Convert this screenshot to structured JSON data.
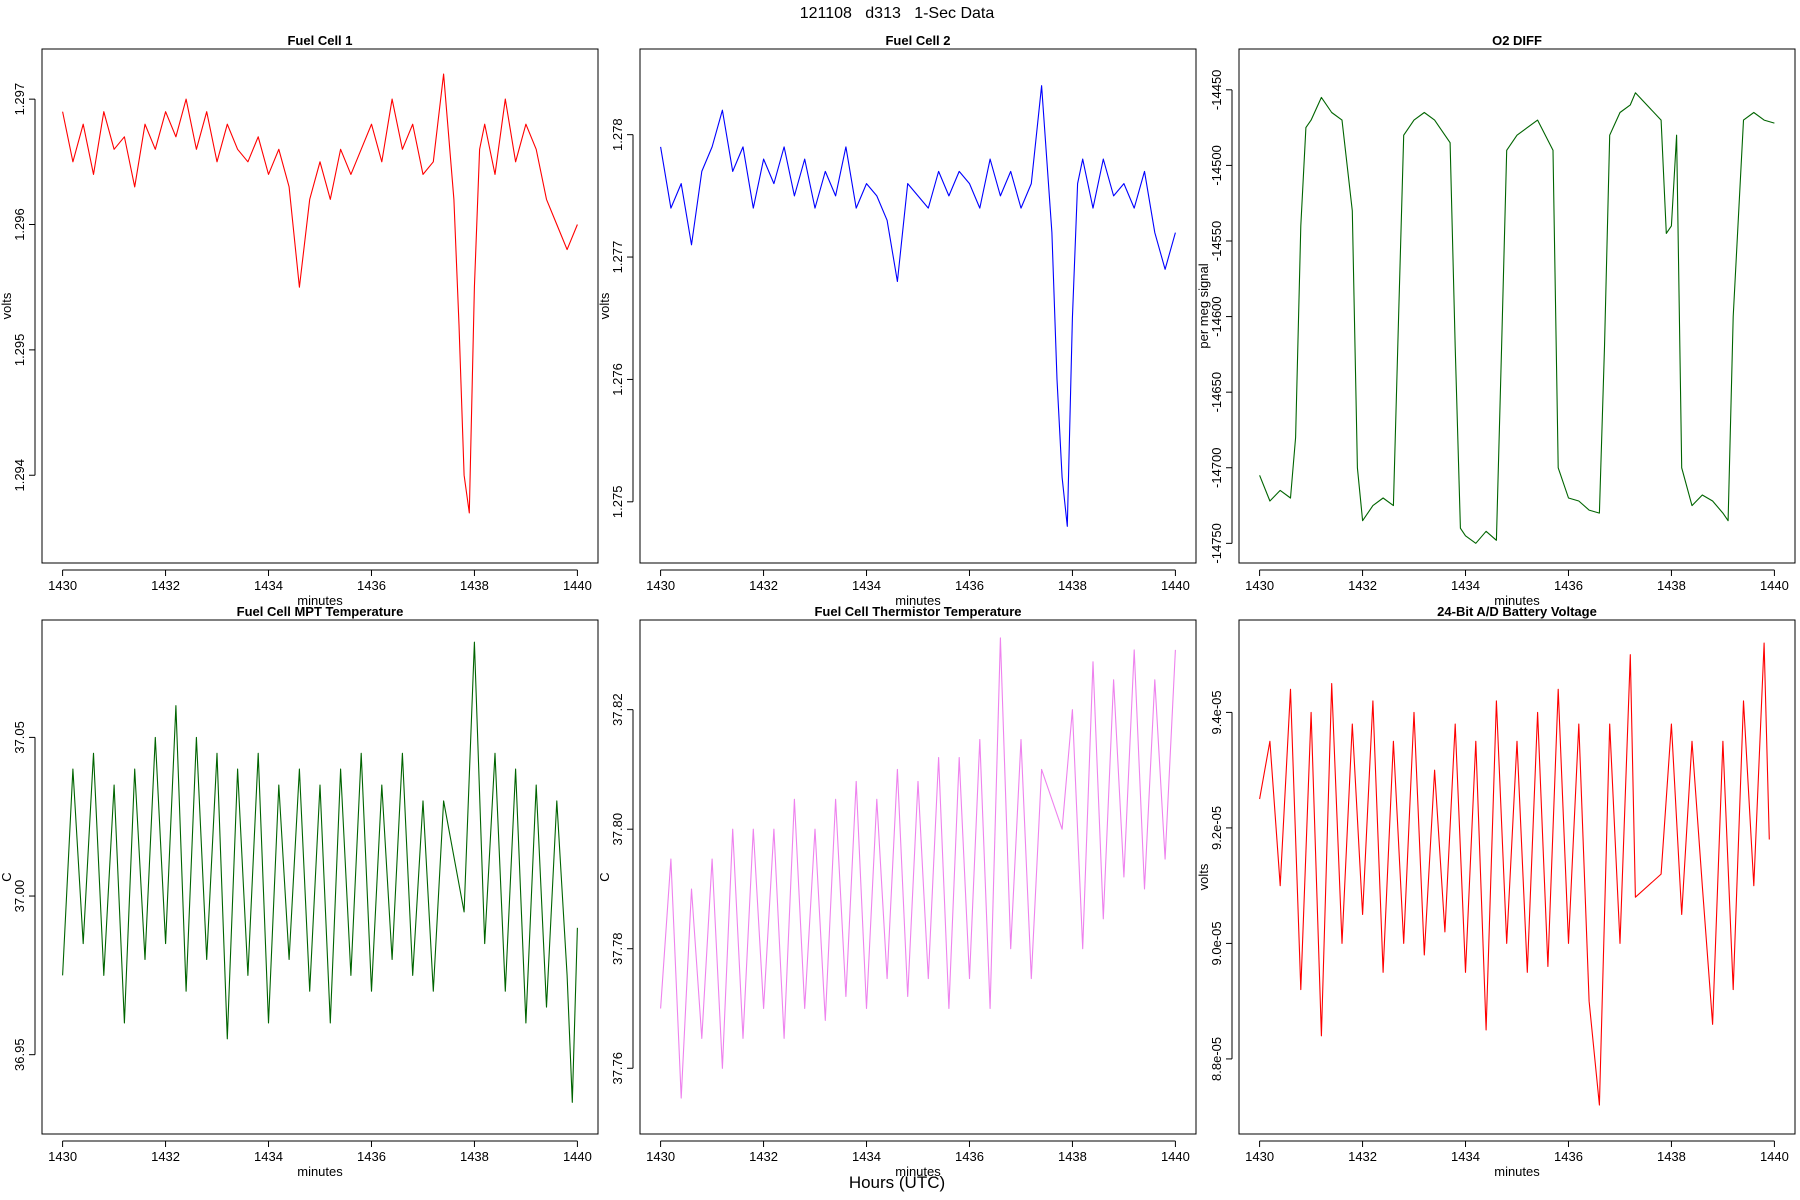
{
  "figure": {
    "title": "121108   d313   1-Sec Data",
    "xlabel": "Hours (UTC)",
    "colors": {
      "axis": "#000000",
      "background": "#ffffff"
    }
  },
  "chart_data": [
    {
      "type": "line",
      "title": "Fuel Cell 1",
      "xlabel": "minutes",
      "ylabel": "volts",
      "xlim": [
        1429.6,
        1440.4
      ],
      "ylim": [
        1.2933,
        1.2974
      ],
      "xticks": [
        1430,
        1432,
        1434,
        1436,
        1438,
        1440
      ],
      "xtick_labels": [
        "1430",
        "1432",
        "1434",
        "1436",
        "1438",
        "1440"
      ],
      "yticks": [
        1.294,
        1.295,
        1.296,
        1.297
      ],
      "ytick_labels": [
        "1.294",
        "1.295",
        "1.296",
        "1.297"
      ],
      "grid": false,
      "series": [
        {
          "color": "#ff0000",
          "x": [
            1430.0,
            1430.2,
            1430.4,
            1430.6,
            1430.8,
            1431.0,
            1431.2,
            1431.4,
            1431.6,
            1431.8,
            1432.0,
            1432.2,
            1432.4,
            1432.6,
            1432.8,
            1433.0,
            1433.2,
            1433.4,
            1433.6,
            1433.8,
            1434.0,
            1434.2,
            1434.4,
            1434.6,
            1434.8,
            1435.0,
            1435.2,
            1435.4,
            1435.6,
            1435.8,
            1436.0,
            1436.2,
            1436.4,
            1436.6,
            1436.8,
            1437.0,
            1437.2,
            1437.4,
            1437.6,
            1437.7,
            1437.8,
            1437.9,
            1438.0,
            1438.1,
            1438.2,
            1438.4,
            1438.6,
            1438.8,
            1439.0,
            1439.2,
            1439.4,
            1439.6,
            1439.8,
            1440.0
          ],
          "y": [
            1.2969,
            1.2965,
            1.2968,
            1.2964,
            1.2969,
            1.2966,
            1.2967,
            1.2963,
            1.2968,
            1.2966,
            1.2969,
            1.2967,
            1.297,
            1.2966,
            1.2969,
            1.2965,
            1.2968,
            1.2966,
            1.2965,
            1.2967,
            1.2964,
            1.2966,
            1.2963,
            1.2955,
            1.2962,
            1.2965,
            1.2962,
            1.2966,
            1.2964,
            1.2966,
            1.2968,
            1.2965,
            1.297,
            1.2966,
            1.2968,
            1.2964,
            1.2965,
            1.2972,
            1.2962,
            1.2952,
            1.294,
            1.2937,
            1.2955,
            1.2966,
            1.2968,
            1.2964,
            1.297,
            1.2965,
            1.2968,
            1.2966,
            1.2962,
            1.296,
            1.2958,
            1.296
          ]
        }
      ]
    },
    {
      "type": "line",
      "title": "Fuel Cell 2",
      "xlabel": "minutes",
      "ylabel": "volts",
      "xlim": [
        1429.6,
        1440.4
      ],
      "ylim": [
        1.2745,
        1.2787
      ],
      "xticks": [
        1430,
        1432,
        1434,
        1436,
        1438,
        1440
      ],
      "xtick_labels": [
        "1430",
        "1432",
        "1434",
        "1436",
        "1438",
        "1440"
      ],
      "yticks": [
        1.275,
        1.276,
        1.277,
        1.278
      ],
      "ytick_labels": [
        "1.275",
        "1.276",
        "1.277",
        "1.278"
      ],
      "grid": false,
      "series": [
        {
          "color": "#0000ff",
          "x": [
            1430.0,
            1430.2,
            1430.4,
            1430.6,
            1430.8,
            1431.0,
            1431.2,
            1431.4,
            1431.6,
            1431.8,
            1432.0,
            1432.2,
            1432.4,
            1432.6,
            1432.8,
            1433.0,
            1433.2,
            1433.4,
            1433.6,
            1433.8,
            1434.0,
            1434.2,
            1434.4,
            1434.6,
            1434.8,
            1435.0,
            1435.2,
            1435.4,
            1435.6,
            1435.8,
            1436.0,
            1436.2,
            1436.4,
            1436.6,
            1436.8,
            1437.0,
            1437.2,
            1437.4,
            1437.6,
            1437.7,
            1437.8,
            1437.9,
            1438.0,
            1438.1,
            1438.2,
            1438.4,
            1438.6,
            1438.8,
            1439.0,
            1439.2,
            1439.4,
            1439.6,
            1439.8,
            1440.0
          ],
          "y": [
            1.2779,
            1.2774,
            1.2776,
            1.2771,
            1.2777,
            1.2779,
            1.2782,
            1.2777,
            1.2779,
            1.2774,
            1.2778,
            1.2776,
            1.2779,
            1.2775,
            1.2778,
            1.2774,
            1.2777,
            1.2775,
            1.2779,
            1.2774,
            1.2776,
            1.2775,
            1.2773,
            1.2768,
            1.2776,
            1.2775,
            1.2774,
            1.2777,
            1.2775,
            1.2777,
            1.2776,
            1.2774,
            1.2778,
            1.2775,
            1.2777,
            1.2774,
            1.2776,
            1.2784,
            1.2772,
            1.276,
            1.2752,
            1.2748,
            1.2765,
            1.2776,
            1.2778,
            1.2774,
            1.2778,
            1.2775,
            1.2776,
            1.2774,
            1.2777,
            1.2772,
            1.2769,
            1.2772
          ]
        }
      ]
    },
    {
      "type": "line",
      "title": "O2 DIFF",
      "xlabel": "minutes",
      "ylabel": "per meg signal",
      "xlim": [
        1429.6,
        1440.4
      ],
      "ylim": [
        -14763,
        -14423
      ],
      "xticks": [
        1430,
        1432,
        1434,
        1436,
        1438,
        1440
      ],
      "xtick_labels": [
        "1430",
        "1432",
        "1434",
        "1436",
        "1438",
        "1440"
      ],
      "yticks": [
        -14750,
        -14700,
        -14650,
        -14600,
        -14550,
        -14500,
        -14450
      ],
      "ytick_labels": [
        "-14750",
        "-14700",
        "-14650",
        "-14600",
        "-14550",
        "-14500",
        "-14450"
      ],
      "grid": false,
      "series": [
        {
          "color": "#006400",
          "x": [
            1430.0,
            1430.2,
            1430.4,
            1430.6,
            1430.7,
            1430.8,
            1430.9,
            1431.0,
            1431.2,
            1431.4,
            1431.6,
            1431.8,
            1431.9,
            1432.0,
            1432.2,
            1432.4,
            1432.6,
            1432.7,
            1432.8,
            1433.0,
            1433.2,
            1433.4,
            1433.7,
            1433.8,
            1433.9,
            1434.0,
            1434.2,
            1434.4,
            1434.6,
            1434.7,
            1434.8,
            1435.0,
            1435.2,
            1435.4,
            1435.7,
            1435.8,
            1436.0,
            1436.2,
            1436.4,
            1436.6,
            1436.7,
            1436.8,
            1437.0,
            1437.2,
            1437.3,
            1437.8,
            1437.9,
            1438.0,
            1438.1,
            1438.2,
            1438.4,
            1438.6,
            1438.8,
            1439.0,
            1439.1,
            1439.2,
            1439.4,
            1439.6,
            1439.8,
            1440.0
          ],
          "y": [
            -14705,
            -14722,
            -14715,
            -14720,
            -14680,
            -14540,
            -14475,
            -14470,
            -14455,
            -14465,
            -14470,
            -14530,
            -14700,
            -14735,
            -14725,
            -14720,
            -14725,
            -14600,
            -14480,
            -14470,
            -14465,
            -14470,
            -14485,
            -14620,
            -14740,
            -14745,
            -14750,
            -14742,
            -14748,
            -14620,
            -14490,
            -14480,
            -14475,
            -14470,
            -14490,
            -14700,
            -14720,
            -14722,
            -14728,
            -14730,
            -14620,
            -14480,
            -14465,
            -14460,
            -14452,
            -14470,
            -14545,
            -14540,
            -14480,
            -14700,
            -14725,
            -14718,
            -14722,
            -14730,
            -14735,
            -14600,
            -14470,
            -14465,
            -14470,
            -14472
          ]
        }
      ]
    },
    {
      "type": "line",
      "title": "Fuel Cell MPT Temperature",
      "xlabel": "minutes",
      "ylabel": "C",
      "xlim": [
        1429.6,
        1440.4
      ],
      "ylim": [
        36.925,
        37.087
      ],
      "xticks": [
        1430,
        1432,
        1434,
        1436,
        1438,
        1440
      ],
      "xtick_labels": [
        "1430",
        "1432",
        "1434",
        "1436",
        "1438",
        "1440"
      ],
      "yticks": [
        36.95,
        37.0,
        37.05
      ],
      "ytick_labels": [
        "36.95",
        "37.00",
        "37.05"
      ],
      "grid": false,
      "series": [
        {
          "color": "#006400",
          "x": [
            1430.0,
            1430.2,
            1430.4,
            1430.6,
            1430.8,
            1431.0,
            1431.2,
            1431.4,
            1431.6,
            1431.8,
            1432.0,
            1432.2,
            1432.4,
            1432.6,
            1432.8,
            1433.0,
            1433.2,
            1433.4,
            1433.6,
            1433.8,
            1434.0,
            1434.2,
            1434.4,
            1434.6,
            1434.8,
            1435.0,
            1435.2,
            1435.4,
            1435.6,
            1435.8,
            1436.0,
            1436.2,
            1436.4,
            1436.6,
            1436.8,
            1437.0,
            1437.2,
            1437.4,
            1437.8,
            1438.0,
            1438.2,
            1438.4,
            1438.6,
            1438.8,
            1439.0,
            1439.2,
            1439.4,
            1439.6,
            1439.8,
            1439.9,
            1440.0
          ],
          "y": [
            36.975,
            37.04,
            36.985,
            37.045,
            36.975,
            37.035,
            36.96,
            37.04,
            36.98,
            37.05,
            36.985,
            37.06,
            36.97,
            37.05,
            36.98,
            37.045,
            36.955,
            37.04,
            36.975,
            37.045,
            36.96,
            37.035,
            36.98,
            37.04,
            36.97,
            37.035,
            36.96,
            37.04,
            36.975,
            37.045,
            36.97,
            37.035,
            36.98,
            37.045,
            36.975,
            37.03,
            36.97,
            37.03,
            36.995,
            37.08,
            36.985,
            37.045,
            36.97,
            37.04,
            36.96,
            37.035,
            36.965,
            37.03,
            36.975,
            36.935,
            36.99
          ]
        }
      ]
    },
    {
      "type": "line",
      "title": "Fuel Cell Thermistor Temperature",
      "xlabel": "minutes",
      "ylabel": "C",
      "xlim": [
        1429.6,
        1440.4
      ],
      "ylim": [
        37.749,
        37.835
      ],
      "xticks": [
        1430,
        1432,
        1434,
        1436,
        1438,
        1440
      ],
      "xtick_labels": [
        "1430",
        "1432",
        "1434",
        "1436",
        "1438",
        "1440"
      ],
      "yticks": [
        37.76,
        37.78,
        37.8,
        37.82
      ],
      "ytick_labels": [
        "37.76",
        "37.78",
        "37.80",
        "37.82"
      ],
      "grid": false,
      "series": [
        {
          "color": "#ee82ee",
          "x": [
            1430.0,
            1430.2,
            1430.4,
            1430.6,
            1430.8,
            1431.0,
            1431.2,
            1431.4,
            1431.6,
            1431.8,
            1432.0,
            1432.2,
            1432.4,
            1432.6,
            1432.8,
            1433.0,
            1433.2,
            1433.4,
            1433.6,
            1433.8,
            1434.0,
            1434.2,
            1434.4,
            1434.6,
            1434.8,
            1435.0,
            1435.2,
            1435.4,
            1435.6,
            1435.8,
            1436.0,
            1436.2,
            1436.4,
            1436.6,
            1436.8,
            1437.0,
            1437.2,
            1437.4,
            1437.8,
            1438.0,
            1438.2,
            1438.4,
            1438.6,
            1438.8,
            1439.0,
            1439.2,
            1439.4,
            1439.6,
            1439.8,
            1440.0
          ],
          "y": [
            37.77,
            37.795,
            37.755,
            37.79,
            37.765,
            37.795,
            37.76,
            37.8,
            37.765,
            37.8,
            37.77,
            37.8,
            37.765,
            37.805,
            37.77,
            37.8,
            37.768,
            37.805,
            37.772,
            37.808,
            37.77,
            37.805,
            37.775,
            37.81,
            37.772,
            37.808,
            37.775,
            37.812,
            37.77,
            37.812,
            37.775,
            37.815,
            37.77,
            37.832,
            37.78,
            37.815,
            37.775,
            37.81,
            37.8,
            37.82,
            37.78,
            37.828,
            37.785,
            37.825,
            37.792,
            37.83,
            37.79,
            37.825,
            37.795,
            37.83
          ]
        }
      ]
    },
    {
      "type": "line",
      "title": "24-Bit A/D Battery Voltage",
      "xlabel": "minutes",
      "ylabel": "volts",
      "xlim": [
        1429.6,
        1440.4
      ],
      "ylim": [
        8.67e-05,
        9.56e-05
      ],
      "xticks": [
        1430,
        1432,
        1434,
        1436,
        1438,
        1440
      ],
      "xtick_labels": [
        "1430",
        "1432",
        "1434",
        "1436",
        "1438",
        "1440"
      ],
      "yticks": [
        8.8e-05,
        9e-05,
        9.2e-05,
        9.4e-05
      ],
      "ytick_labels": [
        "8.8e-05",
        "9.0e-05",
        "9.2e-05",
        "9.4e-05"
      ],
      "grid": false,
      "series": [
        {
          "color": "#ff0000",
          "x": [
            1430.0,
            1430.2,
            1430.4,
            1430.6,
            1430.8,
            1431.0,
            1431.2,
            1431.4,
            1431.6,
            1431.8,
            1432.0,
            1432.2,
            1432.4,
            1432.6,
            1432.8,
            1433.0,
            1433.2,
            1433.4,
            1433.6,
            1433.8,
            1434.0,
            1434.2,
            1434.4,
            1434.6,
            1434.8,
            1435.0,
            1435.2,
            1435.4,
            1435.6,
            1435.8,
            1436.0,
            1436.2,
            1436.4,
            1436.6,
            1436.8,
            1437.0,
            1437.2,
            1437.3,
            1437.8,
            1438.0,
            1438.2,
            1438.4,
            1438.6,
            1438.8,
            1439.0,
            1439.2,
            1439.4,
            1439.6,
            1439.8,
            1439.9
          ],
          "y": [
            9.25e-05,
            9.35e-05,
            9.1e-05,
            9.44e-05,
            8.92e-05,
            9.4e-05,
            8.84e-05,
            9.45e-05,
            9e-05,
            9.38e-05,
            9.05e-05,
            9.42e-05,
            8.95e-05,
            9.35e-05,
            9e-05,
            9.4e-05,
            8.98e-05,
            9.3e-05,
            9.02e-05,
            9.38e-05,
            8.95e-05,
            9.35e-05,
            8.85e-05,
            9.42e-05,
            9e-05,
            9.35e-05,
            8.95e-05,
            9.4e-05,
            8.96e-05,
            9.44e-05,
            9e-05,
            9.38e-05,
            8.9e-05,
            8.72e-05,
            9.38e-05,
            9e-05,
            9.5e-05,
            9.08e-05,
            9.12e-05,
            9.38e-05,
            9.05e-05,
            9.35e-05,
            9.1e-05,
            8.86e-05,
            9.35e-05,
            8.92e-05,
            9.42e-05,
            9.1e-05,
            9.52e-05,
            9.18e-05
          ]
        }
      ]
    }
  ]
}
